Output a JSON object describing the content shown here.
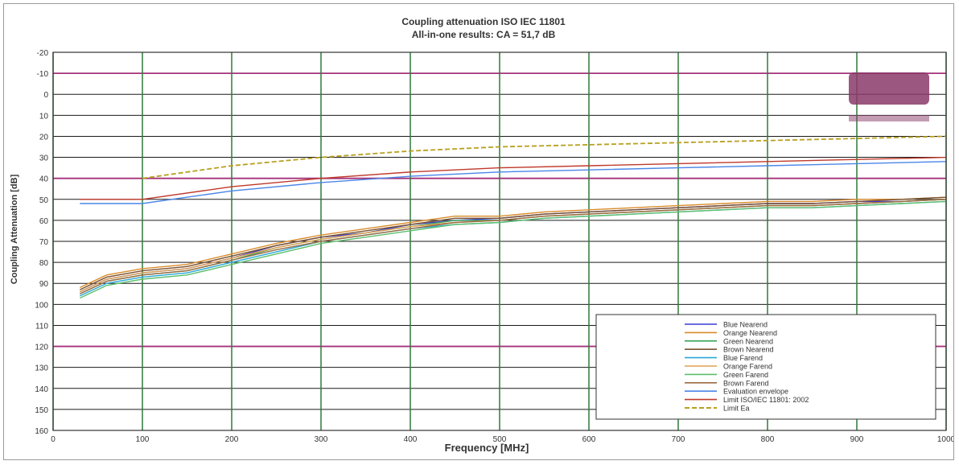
{
  "chart_data": {
    "type": "line",
    "title": "Coupling attenuation ISO IEC 11801",
    "subtitle": "All-in-one results: CA = 51,7 dB",
    "xlabel": "Frequency [MHz]",
    "ylabel": "Coupling Attenuation [dB]",
    "xlim": [
      0,
      1000
    ],
    "ylim": [
      -20,
      160
    ],
    "y_inverted": true,
    "grid": true,
    "legend_position": "bottom-right",
    "x_ticks": [
      "0",
      "100",
      "200",
      "300",
      "400",
      "500",
      "600",
      "700",
      "800",
      "900",
      "1000"
    ],
    "y_ticks": [
      "-20",
      "-10",
      "0",
      "10",
      "20",
      "30",
      "40",
      "50",
      "60",
      "70",
      "80",
      "90",
      "100",
      "110",
      "120",
      "130",
      "140",
      "150",
      "160"
    ],
    "series": [
      {
        "name": "Blue Nearend",
        "color": "#3b3bd6",
        "x": [
          30,
          60,
          100,
          150,
          200,
          250,
          300,
          350,
          400,
          450,
          500,
          550,
          600,
          650,
          700,
          750,
          800,
          850,
          900,
          950,
          1000
        ],
        "y": [
          94,
          88,
          85,
          83,
          78,
          72,
          68,
          66,
          62,
          60,
          59,
          57,
          56,
          55,
          54,
          53,
          52,
          52,
          51,
          51,
          50
        ]
      },
      {
        "name": "Orange Nearend",
        "color": "#d98c2b",
        "x": [
          30,
          60,
          100,
          150,
          200,
          250,
          300,
          350,
          400,
          450,
          500,
          550,
          600,
          650,
          700,
          750,
          800,
          850,
          900,
          950,
          1000
        ],
        "y": [
          92,
          86,
          83,
          81,
          76,
          71,
          67,
          64,
          61,
          58,
          58,
          56,
          55,
          54,
          53,
          52,
          51,
          51,
          50,
          50,
          49
        ]
      },
      {
        "name": "Green Nearend",
        "color": "#3aa55a",
        "x": [
          30,
          60,
          100,
          150,
          200,
          250,
          300,
          350,
          400,
          450,
          500,
          550,
          600,
          650,
          700,
          750,
          800,
          850,
          900,
          950,
          1000
        ],
        "y": [
          95,
          89,
          86,
          84,
          79,
          73,
          69,
          66,
          63,
          60,
          60,
          58,
          57,
          56,
          55,
          54,
          53,
          53,
          52,
          51,
          50
        ]
      },
      {
        "name": "Brown Nearend",
        "color": "#7a5230",
        "x": [
          30,
          60,
          100,
          150,
          200,
          250,
          300,
          350,
          400,
          450,
          500,
          550,
          600,
          650,
          700,
          750,
          800,
          850,
          900,
          950,
          1000
        ],
        "y": [
          93,
          87,
          84,
          82,
          77,
          72,
          68,
          65,
          62,
          59,
          59,
          57,
          56,
          55,
          54,
          53,
          52,
          52,
          51,
          50,
          49
        ]
      },
      {
        "name": "Blue Farend",
        "color": "#2aa7d8",
        "x": [
          30,
          60,
          100,
          150,
          200,
          250,
          300,
          350,
          400,
          450,
          500,
          550,
          600,
          650,
          700,
          750,
          800,
          850,
          900,
          950,
          1000
        ],
        "y": [
          96,
          90,
          87,
          85,
          80,
          75,
          70,
          67,
          64,
          62,
          61,
          59,
          58,
          57,
          56,
          55,
          54,
          54,
          53,
          52,
          51
        ]
      },
      {
        "name": "Orange Farend",
        "color": "#e0a050",
        "x": [
          30,
          60,
          100,
          150,
          200,
          250,
          300,
          350,
          400,
          450,
          500,
          550,
          600,
          650,
          700,
          750,
          800,
          850,
          900,
          950,
          1000
        ],
        "y": [
          94,
          88,
          85,
          83,
          78,
          73,
          69,
          66,
          63,
          61,
          60,
          58,
          57,
          56,
          55,
          54,
          53,
          53,
          52,
          51,
          50
        ]
      },
      {
        "name": "Green Farend",
        "color": "#5cbf6b",
        "x": [
          30,
          60,
          100,
          150,
          200,
          250,
          300,
          350,
          400,
          450,
          500,
          550,
          600,
          650,
          700,
          750,
          800,
          850,
          900,
          950,
          1000
        ],
        "y": [
          97,
          91,
          88,
          86,
          81,
          76,
          71,
          68,
          65,
          62,
          61,
          59,
          58,
          57,
          56,
          55,
          54,
          54,
          53,
          52,
          51
        ]
      },
      {
        "name": "Brown Farend",
        "color": "#9a6a40",
        "x": [
          30,
          60,
          100,
          150,
          200,
          250,
          300,
          350,
          400,
          450,
          500,
          550,
          600,
          650,
          700,
          750,
          800,
          850,
          900,
          950,
          1000
        ],
        "y": [
          95,
          89,
          86,
          84,
          79,
          74,
          70,
          67,
          64,
          61,
          60,
          58,
          57,
          56,
          55,
          54,
          53,
          53,
          52,
          51,
          50
        ]
      },
      {
        "name": "Evaluation envelope",
        "color": "#4a86e8",
        "x": [
          30,
          100,
          200,
          300,
          400,
          500,
          600,
          700,
          800,
          900,
          1000
        ],
        "y": [
          52,
          52,
          46,
          42,
          39,
          37,
          36,
          35,
          34,
          33,
          32
        ]
      },
      {
        "name": "Limit ISO/IEC 11801: 2002",
        "color": "#c0392b",
        "x": [
          30,
          100,
          200,
          300,
          400,
          500,
          600,
          700,
          800,
          900,
          1000
        ],
        "y": [
          50,
          50,
          44,
          40,
          37,
          35,
          34,
          33,
          32,
          31,
          30
        ]
      },
      {
        "name": "Limit Ea",
        "color": "#b8a020",
        "x": [
          100,
          200,
          300,
          400,
          500,
          600,
          700,
          800,
          900,
          1000
        ],
        "y": [
          40,
          34,
          30,
          27,
          25,
          24,
          23,
          22,
          21,
          20
        ]
      }
    ]
  }
}
